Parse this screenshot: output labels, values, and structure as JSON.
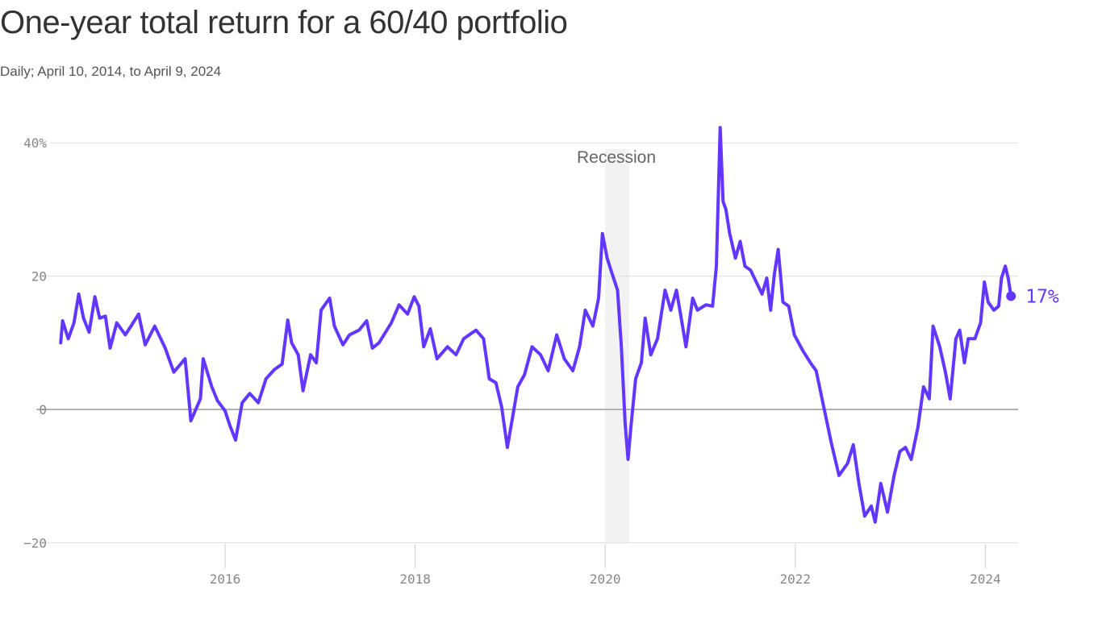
{
  "chart_data": {
    "type": "line",
    "title": "One-year total return for a 60/40 portfolio",
    "subtitle": "Daily; April 10, 2014, to April 9, 2024",
    "xlabel": "",
    "ylabel": "",
    "xlim": [
      2014.27,
      2024.27
    ],
    "ylim": [
      -20,
      40
    ],
    "y_ticks": [
      {
        "value": 40,
        "label": "40%"
      },
      {
        "value": 20,
        "label": "20"
      },
      {
        "value": 0,
        "label": "0"
      },
      {
        "value": -20,
        "label": "−20"
      }
    ],
    "x_ticks": [
      {
        "value": 2016,
        "label": "2016"
      },
      {
        "value": 2018,
        "label": "2018"
      },
      {
        "value": 2020,
        "label": "2020"
      },
      {
        "value": 2022,
        "label": "2022"
      },
      {
        "value": 2024,
        "label": "2024"
      }
    ],
    "grid": true,
    "line_color": "#6236ff",
    "recession": {
      "label": "Recession",
      "start": 2020.0,
      "end": 2020.25,
      "color": "#f2f2f2"
    },
    "end_label": "17%",
    "points": [
      [
        2014.27,
        10.0
      ],
      [
        2014.29,
        13.3
      ],
      [
        2014.35,
        10.6
      ],
      [
        2014.41,
        13.0
      ],
      [
        2014.46,
        17.3
      ],
      [
        2014.51,
        13.7
      ],
      [
        2014.57,
        11.6
      ],
      [
        2014.63,
        16.9
      ],
      [
        2014.68,
        13.7
      ],
      [
        2014.74,
        14.0
      ],
      [
        2014.79,
        9.2
      ],
      [
        2014.86,
        13.0
      ],
      [
        2014.95,
        11.2
      ],
      [
        2015.01,
        12.5
      ],
      [
        2015.09,
        14.3
      ],
      [
        2015.16,
        9.7
      ],
      [
        2015.26,
        12.5
      ],
      [
        2015.37,
        9.2
      ],
      [
        2015.46,
        5.6
      ],
      [
        2015.58,
        7.6
      ],
      [
        2015.64,
        -1.7
      ],
      [
        2015.74,
        1.6
      ],
      [
        2015.77,
        7.6
      ],
      [
        2015.86,
        3.4
      ],
      [
        2015.92,
        1.3
      ],
      [
        2016.0,
        -0.2
      ],
      [
        2016.05,
        -2.4
      ],
      [
        2016.11,
        -4.6
      ],
      [
        2016.18,
        1.0
      ],
      [
        2016.26,
        2.4
      ],
      [
        2016.35,
        1.0
      ],
      [
        2016.43,
        4.6
      ],
      [
        2016.52,
        6.0
      ],
      [
        2016.6,
        6.8
      ],
      [
        2016.66,
        13.4
      ],
      [
        2016.7,
        10.0
      ],
      [
        2016.77,
        8.2
      ],
      [
        2016.82,
        2.8
      ],
      [
        2016.9,
        8.2
      ],
      [
        2016.96,
        7.0
      ],
      [
        2017.01,
        14.9
      ],
      [
        2017.1,
        16.7
      ],
      [
        2017.15,
        12.5
      ],
      [
        2017.24,
        9.7
      ],
      [
        2017.31,
        11.2
      ],
      [
        2017.41,
        11.9
      ],
      [
        2017.49,
        13.3
      ],
      [
        2017.55,
        9.2
      ],
      [
        2017.62,
        10.0
      ],
      [
        2017.75,
        13.0
      ],
      [
        2017.83,
        15.7
      ],
      [
        2017.92,
        14.3
      ],
      [
        2017.99,
        16.9
      ],
      [
        2018.04,
        15.5
      ],
      [
        2018.09,
        9.4
      ],
      [
        2018.16,
        12.1
      ],
      [
        2018.23,
        7.6
      ],
      [
        2018.34,
        9.4
      ],
      [
        2018.43,
        8.2
      ],
      [
        2018.51,
        10.6
      ],
      [
        2018.64,
        11.9
      ],
      [
        2018.72,
        10.6
      ],
      [
        2018.78,
        4.6
      ],
      [
        2018.85,
        4.0
      ],
      [
        2018.91,
        0.4
      ],
      [
        2018.97,
        -5.7
      ],
      [
        2019.03,
        -0.8
      ],
      [
        2019.08,
        3.4
      ],
      [
        2019.15,
        5.2
      ],
      [
        2019.23,
        9.4
      ],
      [
        2019.32,
        8.2
      ],
      [
        2019.4,
        5.8
      ],
      [
        2019.49,
        11.2
      ],
      [
        2019.57,
        7.6
      ],
      [
        2019.66,
        5.8
      ],
      [
        2019.73,
        9.4
      ],
      [
        2019.79,
        14.9
      ],
      [
        2019.87,
        12.5
      ],
      [
        2019.93,
        16.7
      ],
      [
        2019.97,
        26.4
      ],
      [
        2020.02,
        22.7
      ],
      [
        2020.06,
        20.9
      ],
      [
        2020.13,
        17.9
      ],
      [
        2020.17,
        9.4
      ],
      [
        2020.21,
        -2.1
      ],
      [
        2020.24,
        -7.5
      ],
      [
        2020.27,
        -2.7
      ],
      [
        2020.32,
        4.6
      ],
      [
        2020.38,
        7.0
      ],
      [
        2020.42,
        13.7
      ],
      [
        2020.48,
        8.2
      ],
      [
        2020.55,
        10.6
      ],
      [
        2020.63,
        17.9
      ],
      [
        2020.69,
        14.9
      ],
      [
        2020.75,
        17.9
      ],
      [
        2020.8,
        13.7
      ],
      [
        2020.85,
        9.4
      ],
      [
        2020.92,
        16.7
      ],
      [
        2020.97,
        14.9
      ],
      [
        2021.06,
        15.7
      ],
      [
        2021.13,
        15.5
      ],
      [
        2021.17,
        21.5
      ],
      [
        2021.21,
        42.3
      ],
      [
        2021.24,
        31.2
      ],
      [
        2021.27,
        30.0
      ],
      [
        2021.31,
        26.4
      ],
      [
        2021.37,
        22.7
      ],
      [
        2021.42,
        25.2
      ],
      [
        2021.47,
        21.5
      ],
      [
        2021.53,
        20.9
      ],
      [
        2021.59,
        19.1
      ],
      [
        2021.65,
        17.3
      ],
      [
        2021.7,
        19.7
      ],
      [
        2021.74,
        14.9
      ],
      [
        2021.78,
        20.3
      ],
      [
        2021.82,
        24.0
      ],
      [
        2021.87,
        16.1
      ],
      [
        2021.93,
        15.5
      ],
      [
        2021.99,
        11.2
      ],
      [
        2022.08,
        8.8
      ],
      [
        2022.16,
        7.0
      ],
      [
        2022.22,
        5.8
      ],
      [
        2022.29,
        1.0
      ],
      [
        2022.38,
        -5.1
      ],
      [
        2022.46,
        -9.9
      ],
      [
        2022.55,
        -8.1
      ],
      [
        2022.61,
        -5.3
      ],
      [
        2022.67,
        -11.1
      ],
      [
        2022.73,
        -16.0
      ],
      [
        2022.8,
        -14.5
      ],
      [
        2022.84,
        -16.9
      ],
      [
        2022.9,
        -11.1
      ],
      [
        2022.97,
        -15.4
      ],
      [
        2023.04,
        -9.9
      ],
      [
        2023.1,
        -6.3
      ],
      [
        2023.16,
        -5.7
      ],
      [
        2023.22,
        -7.5
      ],
      [
        2023.29,
        -2.7
      ],
      [
        2023.35,
        3.4
      ],
      [
        2023.41,
        1.6
      ],
      [
        2023.45,
        12.5
      ],
      [
        2023.52,
        9.4
      ],
      [
        2023.58,
        5.6
      ],
      [
        2023.63,
        1.6
      ],
      [
        2023.69,
        10.6
      ],
      [
        2023.73,
        11.9
      ],
      [
        2023.78,
        7.0
      ],
      [
        2023.82,
        10.6
      ],
      [
        2023.89,
        10.6
      ],
      [
        2023.95,
        13.0
      ],
      [
        2023.99,
        19.1
      ],
      [
        2024.03,
        16.1
      ],
      [
        2024.09,
        14.9
      ],
      [
        2024.14,
        15.5
      ],
      [
        2024.17,
        19.7
      ],
      [
        2024.21,
        21.5
      ],
      [
        2024.24,
        19.7
      ],
      [
        2024.27,
        17.0
      ]
    ]
  }
}
